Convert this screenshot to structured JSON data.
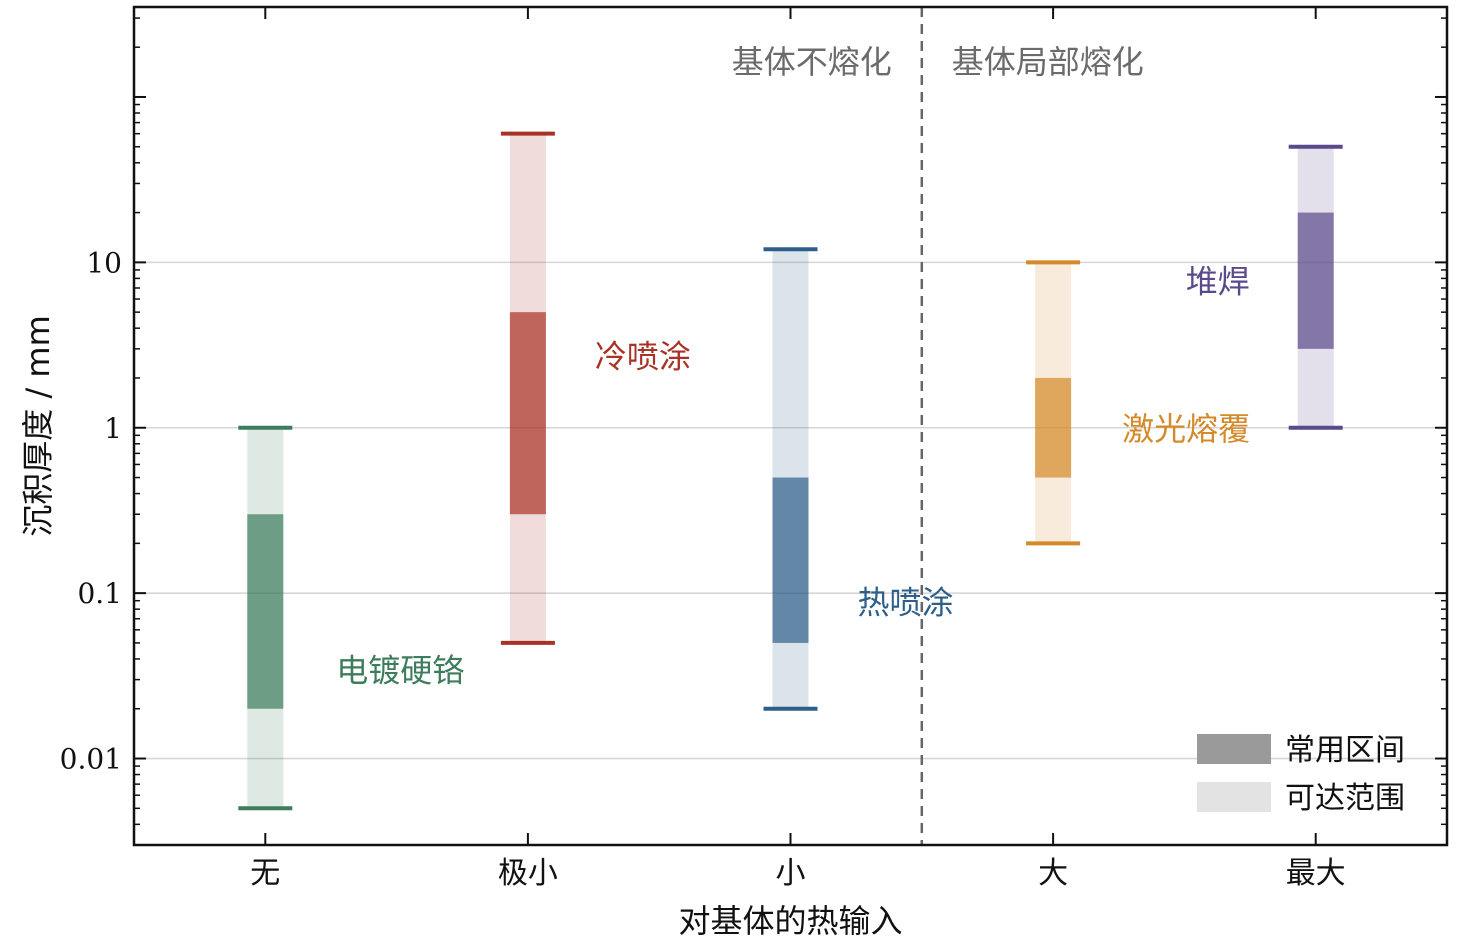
{
  "chart_data": {
    "type": "range-bar",
    "xlabel": "对基体的热输入",
    "ylabel": "沉积厚度 / mm",
    "yscale": "log",
    "ylim": [
      0.003,
      350
    ],
    "yticks": [
      {
        "value": 0.01,
        "label": "0.01"
      },
      {
        "value": 0.1,
        "label": "0.1"
      },
      {
        "value": 1,
        "label": "1"
      },
      {
        "value": 10,
        "label": "10"
      }
    ],
    "grid": "horizontal-major",
    "categories": [
      "无",
      "极小",
      "小",
      "大",
      "最大"
    ],
    "region_labels": {
      "left": "基体不熔化",
      "right": "基体局部熔化"
    },
    "divider_between": [
      "小",
      "大"
    ],
    "legend": {
      "position": "bottom-right",
      "common": "常用区间",
      "reachable": "可达范围"
    },
    "series": [
      {
        "name": "电镀硬铬",
        "category": "无",
        "color": "#3d7d5c",
        "reachable": [
          0.005,
          1
        ],
        "common": [
          0.02,
          0.3
        ]
      },
      {
        "name": "冷喷涂",
        "category": "极小",
        "color": "#a93226",
        "reachable": [
          0.05,
          60
        ],
        "common": [
          0.3,
          5
        ]
      },
      {
        "name": "热喷涂",
        "category": "小",
        "color": "#2e5f8a",
        "reachable": [
          0.02,
          12
        ],
        "common": [
          0.05,
          0.5
        ]
      },
      {
        "name": "激光熔覆",
        "category": "大",
        "color": "#d4892a",
        "reachable": [
          0.2,
          10
        ],
        "common": [
          0.5,
          2
        ]
      },
      {
        "name": "堆焊",
        "category": "最大",
        "color": "#5b4a8b",
        "reachable": [
          1,
          50
        ],
        "common": [
          3,
          20
        ]
      }
    ]
  }
}
